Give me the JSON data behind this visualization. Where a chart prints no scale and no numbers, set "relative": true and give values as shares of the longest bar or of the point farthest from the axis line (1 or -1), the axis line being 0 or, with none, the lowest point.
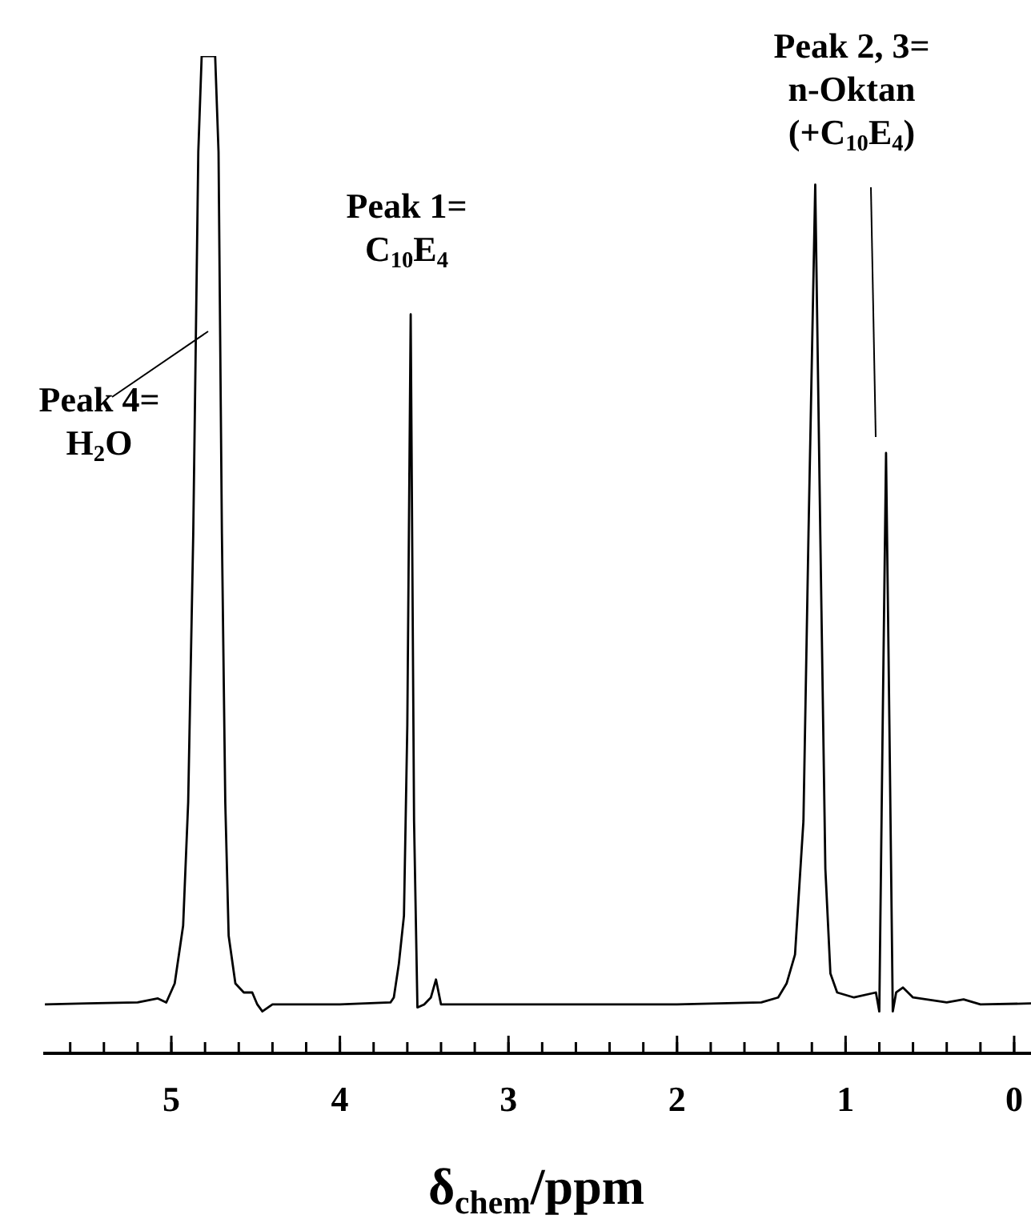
{
  "chart_data": {
    "type": "line",
    "relative": true,
    "color": "#000000",
    "marker": "none",
    "line_style": "solid",
    "xlabel": "δ$_{chem}$/ppm",
    "xlim": [
      5.76,
      -0.1
    ],
    "xticks": [
      {
        "value": 5.6,
        "label": null
      },
      {
        "value": 5.4,
        "label": null
      },
      {
        "value": 5.2,
        "label": null
      },
      5,
      {
        "value": 4.8,
        "label": null
      },
      {
        "value": 4.6,
        "label": null
      },
      {
        "value": 4.4,
        "label": null
      },
      {
        "value": 4.2,
        "label": null
      },
      4,
      {
        "value": 3.8,
        "label": null
      },
      {
        "value": 3.6,
        "label": null
      },
      {
        "value": 3.4,
        "label": null
      },
      {
        "value": 3.2,
        "label": null
      },
      3,
      {
        "value": 2.8,
        "label": null
      },
      {
        "value": 2.6,
        "label": null
      },
      {
        "value": 2.4,
        "label": null
      },
      {
        "value": 2.2,
        "label": null
      },
      2,
      {
        "value": 1.8,
        "label": null
      },
      {
        "value": 1.6,
        "label": null
      },
      {
        "value": 1.4,
        "label": null
      },
      {
        "value": 1.2,
        "label": null
      },
      1,
      {
        "value": 0.8,
        "label": null
      },
      {
        "value": 0.6,
        "label": null
      },
      {
        "value": 0.4,
        "label": null
      },
      {
        "value": 0.2,
        "label": null
      },
      0
    ],
    "x": [
      5.75,
      5.5,
      5.2,
      5.08,
      5.03,
      4.98,
      4.93,
      4.9,
      4.87,
      4.84,
      4.82,
      4.74,
      4.72,
      4.7,
      4.68,
      4.66,
      4.62,
      4.57,
      4.52,
      4.49,
      4.46,
      4.4,
      4.0,
      3.7,
      3.68,
      3.65,
      3.62,
      3.6,
      3.58,
      3.56,
      3.54,
      3.5,
      3.46,
      3.43,
      3.4,
      3.0,
      2.0,
      1.5,
      1.4,
      1.35,
      1.3,
      1.25,
      1.22,
      1.18,
      1.15,
      1.12,
      1.09,
      1.05,
      0.95,
      0.82,
      0.8,
      0.78,
      0.76,
      0.74,
      0.72,
      0.7,
      0.66,
      0.6,
      0.4,
      0.3,
      0.2,
      -0.1
    ],
    "values": [
      0.049,
      0.05,
      0.051,
      0.055,
      0.051,
      0.07,
      0.128,
      0.252,
      0.521,
      0.904,
      1,
      1,
      0.904,
      0.521,
      0.252,
      0.118,
      0.07,
      0.061,
      0.061,
      0.049,
      0.042,
      0.049,
      0.049,
      0.051,
      0.056,
      0.09,
      0.138,
      0.329,
      0.741,
      0.233,
      0.046,
      0.049,
      0.056,
      0.074,
      0.049,
      0.049,
      0.049,
      0.051,
      0.056,
      0.07,
      0.099,
      0.233,
      0.521,
      0.871,
      0.521,
      0.185,
      0.08,
      0.061,
      0.056,
      0.061,
      0.042,
      0.329,
      0.602,
      0.329,
      0.042,
      0.061,
      0.066,
      0.056,
      0.051,
      0.054,
      0.049,
      0.05
    ],
    "annotations": [
      "Peak 4=\nH$_{2}$O",
      "Peak 1=\nC$_{10}$E$_{4}$",
      "Peak 2, 3=\nn-Oktan\n(+C$_{10}$E$_{4}$)"
    ]
  }
}
